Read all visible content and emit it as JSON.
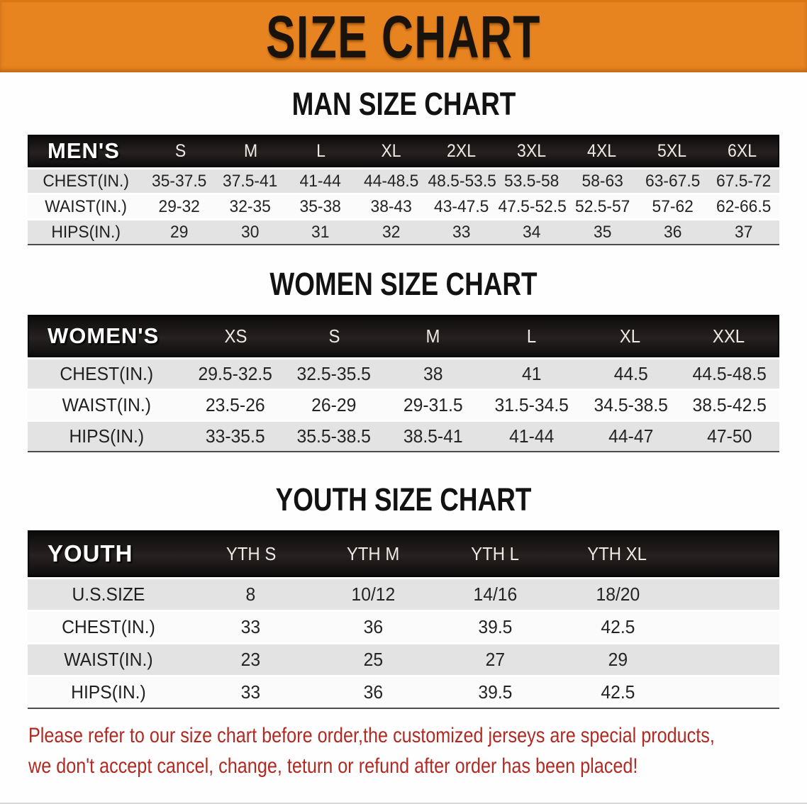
{
  "banner": {
    "title": "SIZE CHART"
  },
  "colors": {
    "banner_bg": "#e8841f",
    "header_band": "#151212",
    "stripe": "#e3e3e3",
    "disclaimer": "#b02a23"
  },
  "sections": [
    {
      "id": "men",
      "heading": "MAN SIZE CHART",
      "table": {
        "label_header": "MEN'S",
        "size_headers": [
          "S",
          "M",
          "L",
          "XL",
          "2XL",
          "3XL",
          "4XL",
          "5XL",
          "6XL"
        ],
        "rows": [
          {
            "label": "CHEST(IN.)",
            "values": [
              "35-37.5",
              "37.5-41",
              "41-44",
              "44-48.5",
              "48.5-53.5",
              "53.5-58",
              "58-63",
              "63-67.5",
              "67.5-72"
            ]
          },
          {
            "label": "WAIST(IN.)",
            "values": [
              "29-32",
              "32-35",
              "35-38",
              "38-43",
              "43-47.5",
              "47.5-52.5",
              "52.5-57",
              "57-62",
              "62-66.5"
            ]
          },
          {
            "label": "HIPS(IN.)",
            "values": [
              "29",
              "30",
              "31",
              "32",
              "33",
              "34",
              "35",
              "36",
              "37"
            ]
          }
        ]
      }
    },
    {
      "id": "women",
      "heading": "WOMEN SIZE CHART",
      "table": {
        "label_header": "WOMEN'S",
        "size_headers": [
          "XS",
          "S",
          "M",
          "L",
          "XL",
          "XXL"
        ],
        "rows": [
          {
            "label": "CHEST(IN.)",
            "values": [
              "29.5-32.5",
              "32.5-35.5",
              "38",
              "41",
              "44.5",
              "44.5-48.5"
            ]
          },
          {
            "label": "WAIST(IN.)",
            "values": [
              "23.5-26",
              "26-29",
              "29-31.5",
              "31.5-34.5",
              "34.5-38.5",
              "38.5-42.5"
            ]
          },
          {
            "label": "HIPS(IN.)",
            "values": [
              "33-35.5",
              "35.5-38.5",
              "38.5-41",
              "41-44",
              "44-47",
              "47-50"
            ]
          }
        ]
      }
    },
    {
      "id": "youth",
      "heading": "YOUTH SIZE CHART",
      "table": {
        "label_header": "YOUTH",
        "size_headers": [
          "YTH S",
          "YTH M",
          "YTH L",
          "YTH XL"
        ],
        "rows": [
          {
            "label": "U.S.SIZE",
            "values": [
              "8",
              "10/12",
              "14/16",
              "18/20"
            ]
          },
          {
            "label": "CHEST(IN.)",
            "values": [
              "33",
              "36",
              "39.5",
              "42.5"
            ]
          },
          {
            "label": "WAIST(IN.)",
            "values": [
              "23",
              "25",
              "27",
              "29"
            ]
          },
          {
            "label": "HIPS(IN.)",
            "values": [
              "33",
              "36",
              "39.5",
              "42.5"
            ]
          }
        ]
      }
    }
  ],
  "disclaimer": {
    "line1": "Please refer to our size chart before order,the customized jerseys are special products,",
    "line2": "we don't accept cancel, change, teturn or refund after order has been placed!"
  }
}
